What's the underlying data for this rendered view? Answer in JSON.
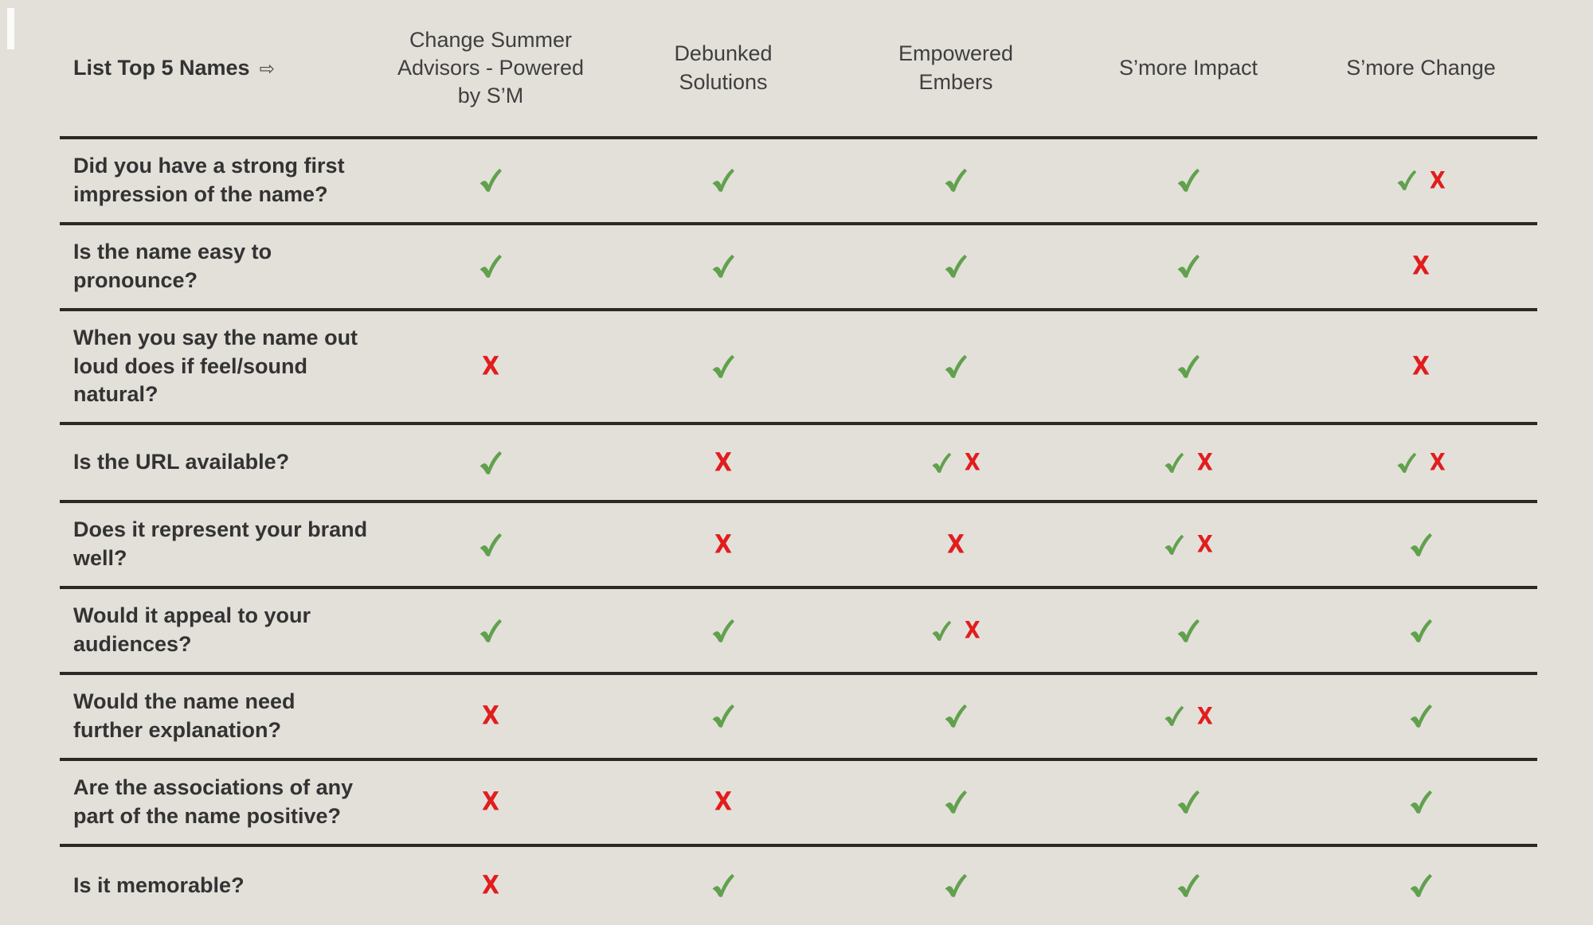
{
  "page": {
    "background": "#e3e0da"
  },
  "colors": {
    "check_green": "#61a14d",
    "x_red": "#e11d1d",
    "divider_line": "#2b2825",
    "text": "#333333"
  },
  "icons": {
    "corner_arrow": "⇨",
    "check": "check-icon (hand-drawn green check)",
    "x": "x-icon (bold red letter X)"
  },
  "marks": {
    "x_glyph": "X"
  },
  "table": {
    "corner_label": "List Top 5 Names",
    "corner_icon": "⇨",
    "columns": [
      "Change Summer Advisors - Powered by S’M",
      "Debunked Solutions",
      "Empowered Embers",
      "S’more Impact",
      "S’more Change"
    ],
    "rows": [
      {
        "question": "Did you have a strong first impression of the name?",
        "cells": [
          "check",
          "check",
          "check",
          "check",
          "check-x"
        ]
      },
      {
        "question": "Is the name easy to pronounce?",
        "cells": [
          "check",
          "check",
          "check",
          "check",
          "x"
        ]
      },
      {
        "question": "When you say the name out loud does if feel/sound natural?",
        "cells": [
          "x",
          "check",
          "check",
          "check",
          "x"
        ]
      },
      {
        "question": "Is the URL available?",
        "cells": [
          "check",
          "x",
          "check-x",
          "check-x",
          "check-x"
        ]
      },
      {
        "question": "Does it represent your brand well?",
        "cells": [
          "check",
          "x",
          "x",
          "check-x",
          "check"
        ]
      },
      {
        "question": "Would it appeal to your audiences?",
        "cells": [
          "check",
          "check",
          "check-x",
          "check",
          "check"
        ]
      },
      {
        "question": "Would the name need further explanation?",
        "cells": [
          "x",
          "check",
          "check",
          "check-x",
          "check"
        ]
      },
      {
        "question": "Are the associations of any part of the name positive?",
        "cells": [
          "x",
          "x",
          "check",
          "check",
          "check"
        ]
      },
      {
        "question": "Is it memorable?",
        "cells": [
          "x",
          "check",
          "check",
          "check",
          "check"
        ]
      }
    ]
  }
}
